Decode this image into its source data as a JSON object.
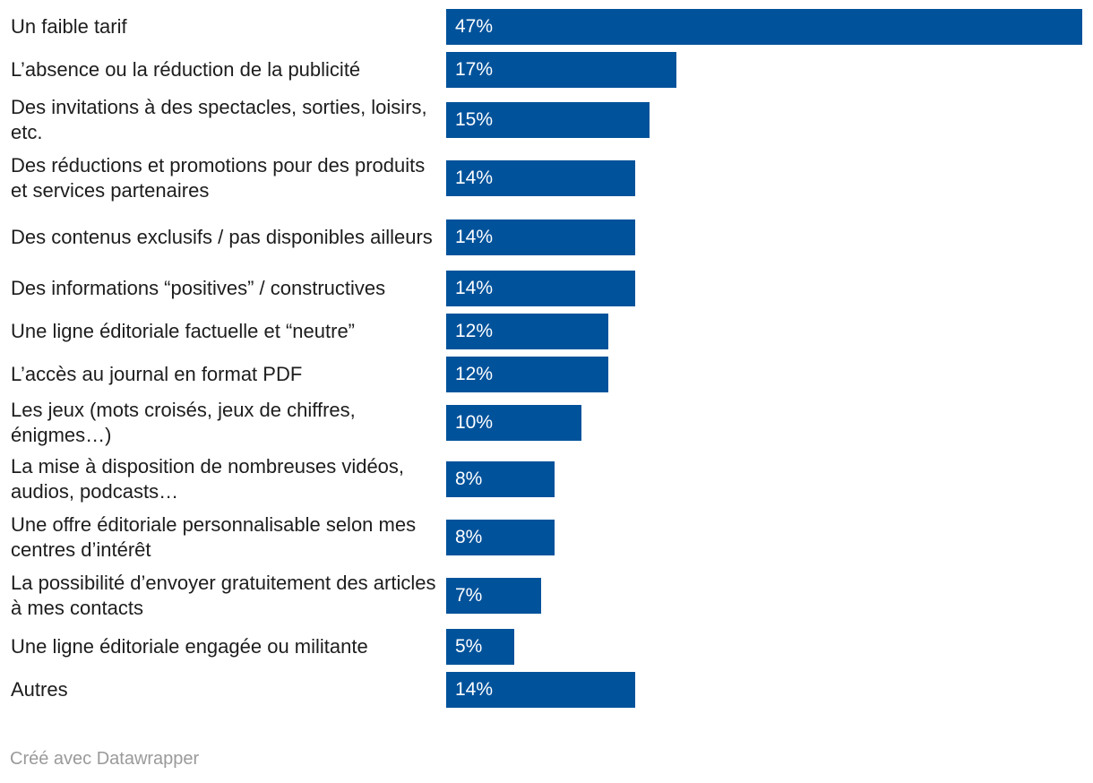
{
  "chart_data": {
    "type": "bar",
    "orientation": "horizontal",
    "bar_color": "#00529b",
    "xlim": [
      0,
      47
    ],
    "categories": [
      "Un faible tarif",
      "L’absence ou la réduction de la publicité",
      "Des invitations à des spectacles, sorties, loisirs, etc.",
      "Des réductions et promotions pour des produits et services partenaires",
      "Des contenus exclusifs / pas disponibles ailleurs",
      "Des informations “positives” / constructives",
      "Une ligne éditoriale factuelle et “neutre”",
      "L’accès au journal en format PDF",
      "Les jeux (mots croisés, jeux de chiffres, énigmes…)",
      "La mise à disposition de nombreuses vidéos, audios, podcasts…",
      "Une offre éditoriale personnalisable selon mes centres d’intérêt",
      "La possibilité d’envoyer gratuitement des articles à mes contacts",
      "Une ligne éditoriale engagée ou militante",
      "Autres"
    ],
    "values": [
      47,
      17,
      15,
      14,
      14,
      14,
      12,
      12,
      10,
      8,
      8,
      7,
      5,
      14
    ],
    "value_labels": [
      "47%",
      "17%",
      "15%",
      "14%",
      "14%",
      "14%",
      "12%",
      "12%",
      "10%",
      "8%",
      "8%",
      "7%",
      "5%",
      "14%"
    ],
    "grid": false,
    "legend": "none"
  },
  "footer": {
    "credit": "Créé avec Datawrapper"
  }
}
